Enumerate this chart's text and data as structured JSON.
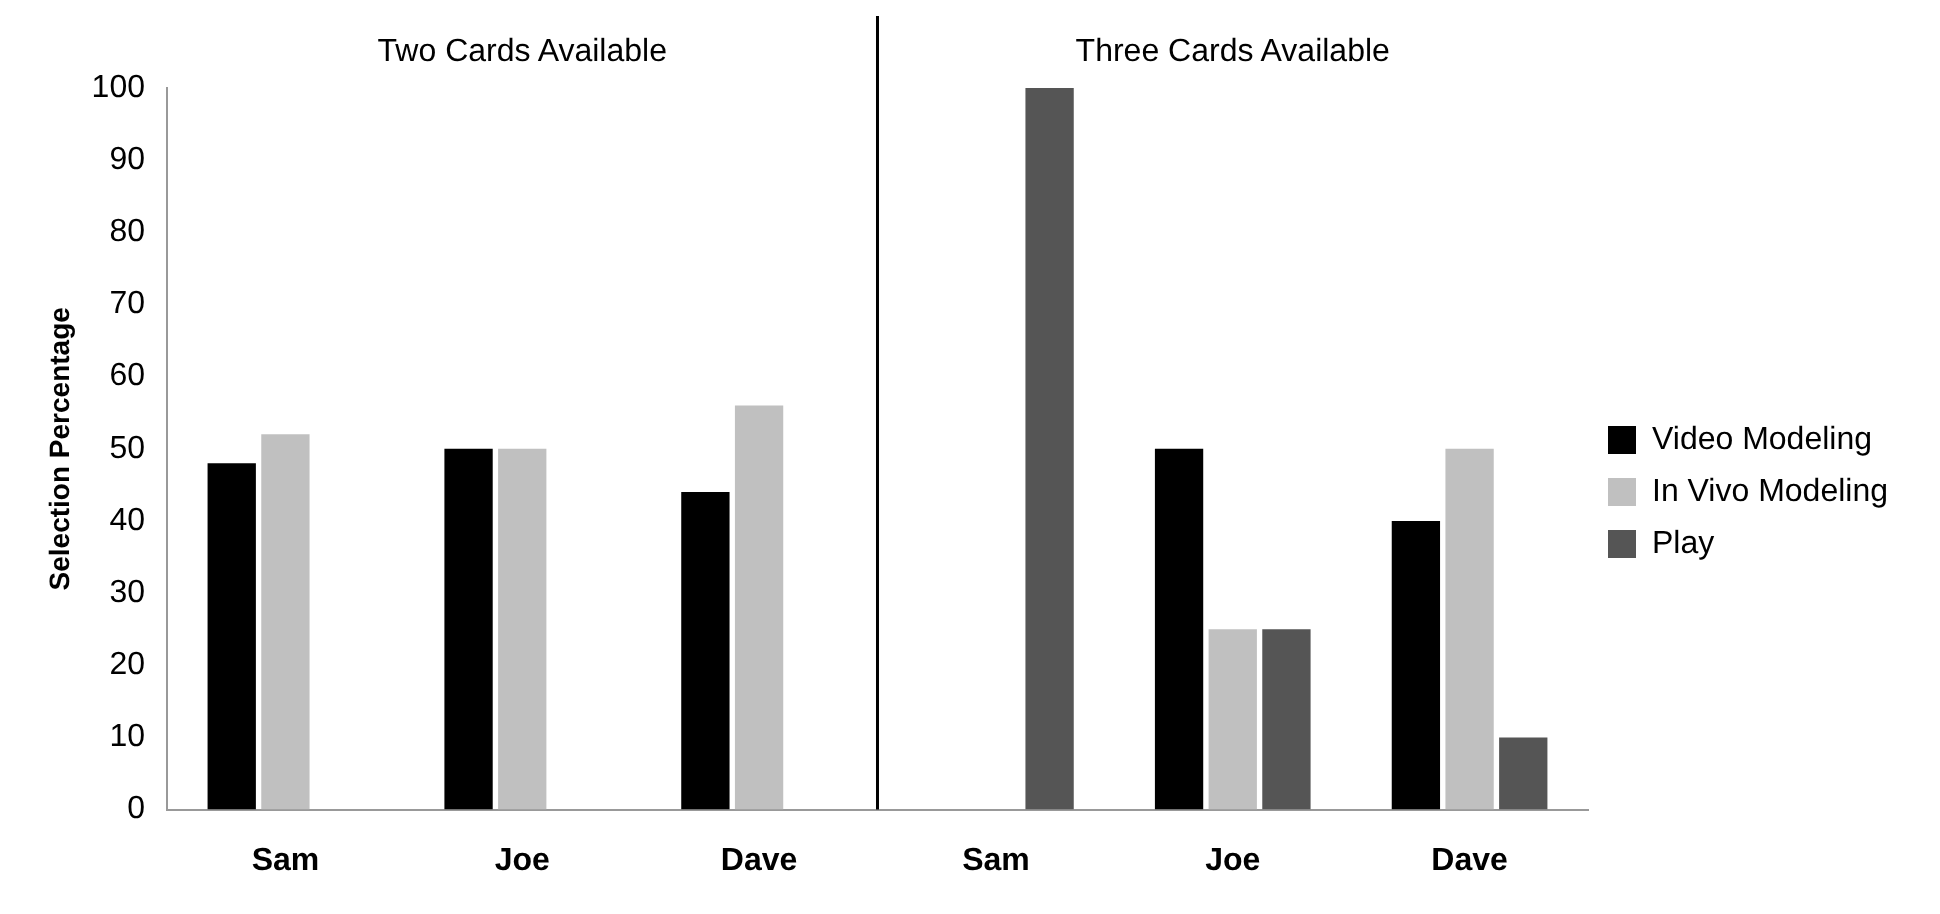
{
  "chart_data": {
    "type": "bar",
    "ylabel": "Selection Percentage",
    "categories": [
      "Sam",
      "Joe",
      "Dave",
      "Sam",
      "Joe",
      "Dave"
    ],
    "series": [
      {
        "name": "Video Modeling",
        "color": "#000000",
        "values": [
          48,
          50,
          44,
          0,
          50,
          40
        ]
      },
      {
        "name": "In Vivo Modeling",
        "color": "#c0c0c0",
        "values": [
          52,
          50,
          56,
          0,
          25,
          50
        ]
      },
      {
        "name": "Play",
        "color": "#555555",
        "values": [
          0,
          0,
          0,
          100,
          25,
          10
        ]
      }
    ],
    "ylim": [
      0,
      100
    ],
    "yticks": [
      0,
      10,
      20,
      30,
      40,
      50,
      60,
      70,
      80,
      90,
      100
    ],
    "grid": false,
    "legend": "right",
    "annotations": [
      "Two Cards Available",
      "Three Cards Available"
    ]
  }
}
